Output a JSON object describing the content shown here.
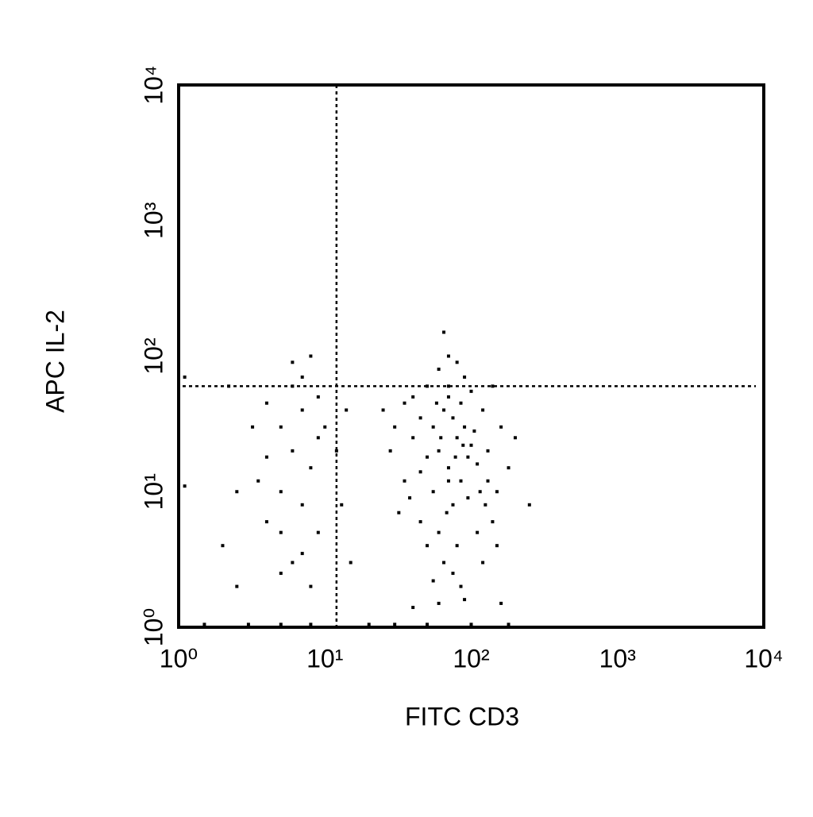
{
  "chart_data": {
    "type": "scatter",
    "x_label": "FITC CD3",
    "y_label": "APC IL-2",
    "xlog": true,
    "ylog": true,
    "xlim": [
      1,
      10000
    ],
    "ylim": [
      1,
      10000
    ],
    "xticks": [
      {
        "value": 1,
        "label": "10⁰"
      },
      {
        "value": 10,
        "label": "10¹"
      },
      {
        "value": 100,
        "label": "10²"
      },
      {
        "value": 1000,
        "label": "10³"
      },
      {
        "value": 10000,
        "label": "10⁴"
      }
    ],
    "yticks": [
      {
        "value": 1,
        "label": "10⁰"
      },
      {
        "value": 10,
        "label": "10¹"
      },
      {
        "value": 100,
        "label": "10²"
      },
      {
        "value": 1000,
        "label": "10³"
      },
      {
        "value": 10000,
        "label": "10⁴"
      }
    ],
    "quadrant": {
      "x": 12,
      "y": 60
    },
    "color": "#000000",
    "series": [
      {
        "x": [
          60,
          70,
          80,
          55,
          90,
          65,
          75,
          50,
          85,
          100,
          45,
          70,
          60,
          80,
          95,
          110,
          40,
          35,
          30,
          120,
          130,
          150,
          65,
          75,
          85,
          55,
          70,
          90,
          60,
          50,
          100,
          40,
          35,
          28,
          25,
          140,
          160,
          180,
          200,
          45,
          50,
          110,
          120,
          150,
          90,
          60,
          40,
          160,
          70,
          80,
          65,
          55,
          75,
          85,
          95,
          105,
          115,
          125,
          45,
          38,
          32,
          130,
          140,
          70,
          62,
          78,
          88,
          68,
          58,
          250,
          5,
          6,
          7,
          8,
          5,
          6,
          4,
          9,
          7,
          5,
          6,
          8,
          4,
          3.5,
          7,
          9,
          6,
          8,
          5,
          4,
          3.2,
          2.5,
          2.2,
          9,
          7,
          10,
          12,
          14,
          13,
          15,
          1.1,
          2,
          2.5,
          1.1,
          3,
          5,
          8,
          20,
          30,
          50,
          100,
          180,
          1.5
        ],
        "values": [
          20,
          15,
          25,
          10,
          30,
          40,
          8,
          18,
          12,
          22,
          35,
          50,
          5,
          4,
          9,
          16,
          25,
          12,
          30,
          40,
          20,
          10,
          3,
          2.5,
          2,
          2.2,
          60,
          70,
          80,
          60,
          55,
          50,
          45,
          20,
          40,
          60,
          30,
          15,
          25,
          6,
          4,
          5,
          3,
          4,
          1.6,
          1.5,
          1.4,
          1.5,
          100,
          90,
          150,
          30,
          35,
          45,
          18,
          28,
          10,
          8,
          14,
          9,
          7,
          12,
          6,
          12,
          25,
          18,
          22,
          7,
          45,
          8,
          30,
          20,
          40,
          15,
          10,
          60,
          45,
          25,
          8,
          5,
          3,
          2,
          18,
          12,
          70,
          50,
          90,
          100,
          2.5,
          6,
          30,
          10,
          60,
          5,
          3.5,
          30,
          20,
          40,
          8,
          3,
          11,
          4,
          2,
          70,
          1.05,
          1.05,
          1.05,
          1.05,
          1.05,
          1.05,
          1.05,
          1.05,
          1.05
        ]
      }
    ]
  }
}
